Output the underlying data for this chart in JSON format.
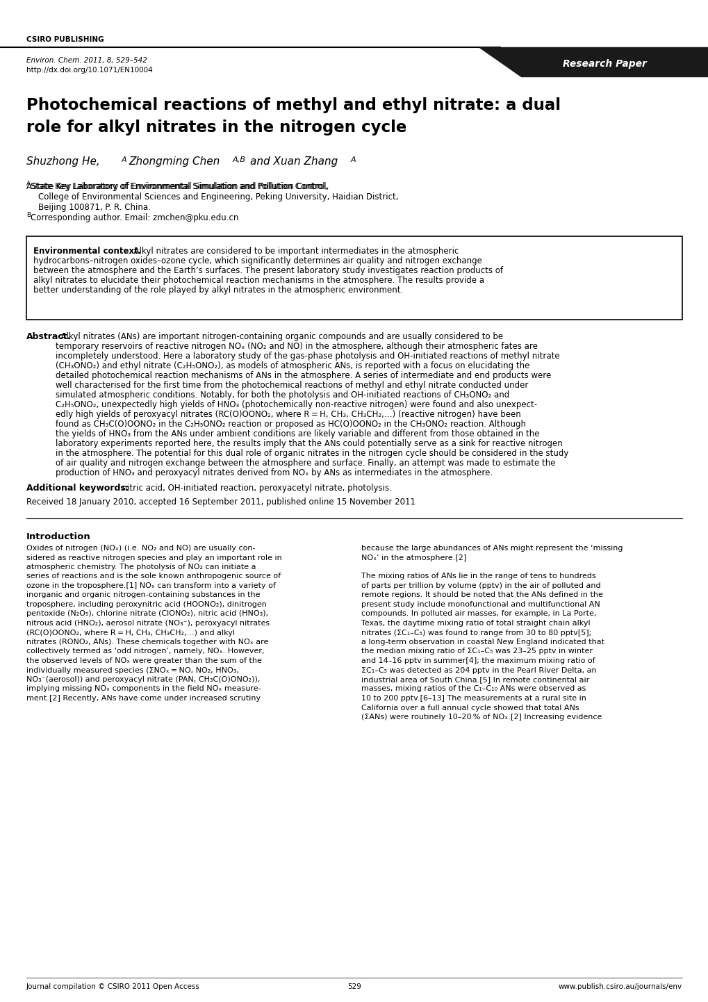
{
  "page_width": 10.2,
  "page_height": 14.42,
  "bg_color": "#ffffff",
  "header_csiro": "CSIRO PUBLISHING",
  "journal_line1": "Environ. Chem. 2011, 8, 529–542",
  "journal_line2": "http://dx.doi.org/10.1071/EN10004",
  "research_paper_label": "Research Paper",
  "title_line1": "Photochemical reactions of methyl and ethyl nitrate: a dual",
  "title_line2": "role for alkyl nitrates in the nitrogen cycle",
  "authors": "Shuzhong He,ᴬ  Zhongming Chenᴬᴮ  and Xuan Zhangᴬ",
  "affil_a": "ᴬState Key Laboratory of Environmental Simulation and Pollution Control,",
  "affil_b": "  College of Environmental Sciences and Engineering, Peking University, Haidian District,",
  "affil_c": "  Beijing 100871, P. R. China.",
  "affil_d": "ᴮCorresponding author. Email: zmchen@pku.edu.cn",
  "env_context_bold": "Environmental context.",
  "env_context_text": "  Alkyl nitrates are considered to be important intermediates in the atmospheric hydrocarbons–nitrogen oxides–ozone cycle, which significantly determines air quality and nitrogen exchange between the atmosphere and the Earth’s surfaces. The present laboratory study investigates reaction products of alkyl nitrates to elucidate their photochemical reaction mechanisms in the atmosphere. The results provide a better understanding of the role played by alkyl nitrates in the atmospheric environment.",
  "abstract_bold": "Abstract.",
  "abstract_text": "  Alkyl nitrates (ANs) are important nitrogen-containing organic compounds and are usually considered to be temporary reservoirs of reactive nitrogen NOₓ (NO₂ and NO) in the atmosphere, although their atmospheric fates are incompletely understood. Here a laboratory study of the gas-phase photolysis and OH-initiated reactions of methyl nitrate (CH₃ONO₂) and ethyl nitrate (C₂H₅ONO₂), as models of atmospheric ANs, is reported with a focus on elucidating the detailed photochemical reaction mechanisms of ANs in the atmosphere. A series of intermediate and end products were well characterised for the first time from the photochemical reactions of methyl and ethyl nitrate conducted under simulated atmospheric conditions. Notably, for both the photolysis and OH-initiated reactions of CH₃ONO₂ and C₂H₅ONO₂, unexpectedly high yields of HNO₃ (photochemically non-reactive nitrogen) were found and also unexpectedly high yields of peroxyacyl nitrates (RC(O)OONO₂, where R = H, CH₃, CH₃CH₂,…) (reactive nitrogen) have been found as CH₃C(O)OONO₂ in the C₂H₅ONO₂ reaction or proposed as HC(O)OONO₂ in the CH₃ONO₂ reaction. Although the yields of HNO₃ from the ANs under ambient conditions are likely variable and different from those obtained in the laboratory experiments reported here, the results imply that the ANs could potentially serve as a sink for reactive nitrogen in the atmosphere. The potential for this dual role of organic nitrates in the nitrogen cycle should be considered in the study of air quality and nitrogen exchange between the atmosphere and surface. Finally, an attempt was made to estimate the production of HNO₃ and peroxyacyl nitrates derived from NOₓ by ANs as intermediates in the atmosphere.",
  "additional_keywords_bold": "Additional keywords:",
  "additional_keywords_text": "  nitric acid, OH-initiated reaction, peroxyacetyl nitrate, photolysis.",
  "received_text": "Received 18 January 2010, accepted 16 September 2011, published online 15 November 2011",
  "intro_heading": "Introduction",
  "intro_col1": "Oxides of nitrogen (NOₓ) (i.e. NO₂ and NO) are usually considered as reactive nitrogen species and play an important role in atmospheric chemistry. The photolysis of NO₂ can initiate a series of reactions and is the sole known anthropogenic source of ozone in the troposphere.[1] NOₓ can transform into a variety of inorganic and organic nitrogen-containing substances in the troposphere, including peroxynitric acid (HOONO₂), dinitrogen pentoxide (N₂O₅), chlorine nitrate (ClONO₂), nitric acid (HNO₃), nitrous acid (HNO₂), aerosol nitrate (NO₃⁻), peroxyacyl nitrates (RC(O)OONO₂, where R = H, CH₃, CH₃CH₂,…) and alkyl nitrates (RONO₂, ANs). These chemicals together with NOₓ are collectively termed as ‘odd nitrogen’, namely, NOₓ. However, the observed levels of NOₓ were greater than the sum of the individually measured species (ΣNOₓ = NO, NO₂, HNO₃, NO₃⁻(aerosol)) and peroxyacyl nitrate (PAN, CH₃C(O)ONO₂)), implying missing NOₓ components in the field NOₓ measurement.[2] Recently, ANs have come under increased scrutiny",
  "intro_col2": "because the large abundances of ANs might represent the ‘missing NOₓ’ in the atmosphere.[2]\n\nThe mixing ratios of ANs lie in the range of tens to hundreds of parts per trillion by volume (pptv) in the air of polluted and remote regions. It should be noted that the ANs defined in the present study include monofunctional and multifunctional AN compounds. In polluted air masses, for example, in La Porte, Texas, the daytime mixing ratio of total straight chain alkyl nitrates (ΣC₁–C₅) was found to range from 30 to 80 pptv[5]; a long-term observation in coastal New England indicated that the median mixing ratio of ΣC₁–C₅ was 23–25 pptv in winter and 14–16 pptv in summer[4]; the maximum mixing ratio of ΣC₁–C₅ was detected as 204 pptv in the Pearl River Delta, an industrial area of South China.[5] In remote continental air masses, mixing ratios of the C₁–C₁₀ ANs were observed as 10 to 200 pptv.[6–13] The measurements at a rural site in California over a full annual cycle showed that total ANs (ΣANs) were routinely 10–20 % of NOₓ.[2] Increasing evidence",
  "footer_left": "Journal compilation © CSIRO 2011 Open Access",
  "footer_center": "529",
  "footer_right": "www.publish.csiro.au/journals/env"
}
